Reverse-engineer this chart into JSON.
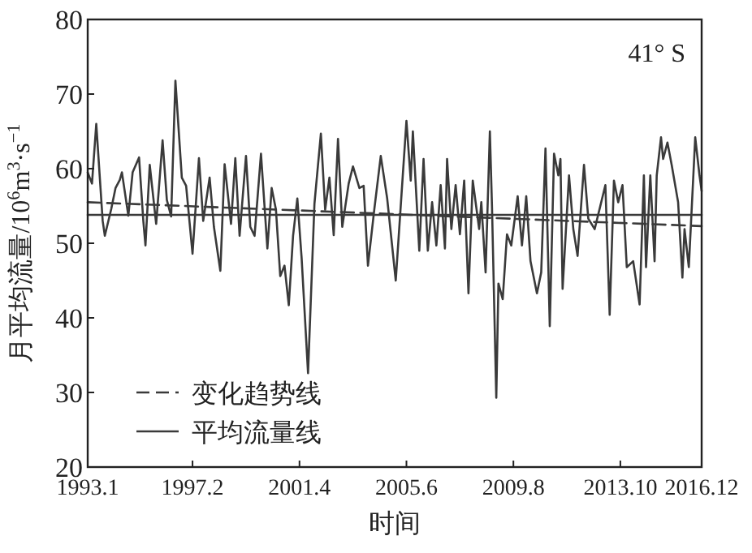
{
  "chart_data": {
    "type": "line",
    "xlabel": "时间",
    "ylabel": "月平均流量/10$^{6}$m$^{3}$·s$^{−1}$",
    "annotations": [
      "41° S"
    ],
    "xlim": [
      "1993-01",
      "2016-12"
    ],
    "xticks": [
      {
        "value": "1993-01",
        "label": "1993.1"
      },
      {
        "value": "1997-02",
        "label": "1997.2"
      },
      {
        "value": "2001-04",
        "label": "2001.4"
      },
      {
        "value": "2005-06",
        "label": "2005.6"
      },
      {
        "value": "2009-08",
        "label": "2009.8"
      },
      {
        "value": "2013-10",
        "label": "2013.10"
      },
      {
        "value": "2016-12",
        "label": "2016.12"
      }
    ],
    "ylim": [
      20,
      80
    ],
    "yticks": [
      20,
      30,
      40,
      50,
      60,
      70,
      80
    ],
    "grid": false,
    "legend": "bottom left",
    "marker": "none",
    "series": [
      {
        "color": "#3a3a3a",
        "line_style": "solid",
        "x": [
          "1993-01",
          "1993-03",
          "1993-05",
          "1993-08",
          "1993-09",
          "1993-12",
          "1994-02",
          "1994-04",
          "1994-05",
          "1994-08",
          "1994-10",
          "1995-01",
          "1995-03",
          "1995-04",
          "1995-06",
          "1995-09",
          "1995-12",
          "1996-02",
          "1996-04",
          "1996-06",
          "1996-09",
          "1996-11",
          "1997-02",
          "1997-05",
          "1997-07",
          "1997-10",
          "1997-12",
          "1998-03",
          "1998-05",
          "1998-08",
          "1998-10",
          "1998-12",
          "1999-03",
          "1999-05",
          "1999-07",
          "1999-10",
          "2000-01",
          "2000-03",
          "2000-05",
          "2000-07",
          "2000-09",
          "2000-11",
          "2001-01",
          "2001-03",
          "2001-05",
          "2001-08",
          "2001-11",
          "2002-02",
          "2002-04",
          "2002-06",
          "2002-08",
          "2002-10",
          "2002-12",
          "2003-03",
          "2003-05",
          "2003-08",
          "2003-10",
          "2003-12",
          "2004-03",
          "2004-06",
          "2004-09",
          "2005-01",
          "2005-06",
          "2005-08",
          "2005-09",
          "2005-12",
          "2006-02",
          "2006-04",
          "2006-06",
          "2006-08",
          "2006-10",
          "2006-12",
          "2007-01",
          "2007-03",
          "2007-05",
          "2007-07",
          "2007-09",
          "2007-11",
          "2008-01",
          "2008-04",
          "2008-05",
          "2008-07",
          "2008-09",
          "2008-10",
          "2008-12",
          "2009-01",
          "2009-03",
          "2009-05",
          "2009-07",
          "2009-10",
          "2009-12",
          "2010-02",
          "2010-04",
          "2010-07",
          "2010-09",
          "2010-11",
          "2011-01",
          "2011-03",
          "2011-05",
          "2011-06",
          "2011-07",
          "2011-10",
          "2011-12",
          "2012-02",
          "2012-05",
          "2012-07",
          "2012-10",
          "2013-03",
          "2013-05",
          "2013-07",
          "2013-09",
          "2013-11",
          "2014-01",
          "2014-04",
          "2014-07",
          "2014-09",
          "2014-10",
          "2014-12",
          "2015-02",
          "2015-03",
          "2015-05",
          "2015-06",
          "2015-08",
          "2015-10",
          "2016-01",
          "2016-03",
          "2016-04",
          "2016-06",
          "2016-09",
          "2016-11",
          "2016-12"
        ],
        "values": [
          59.5,
          58,
          66,
          53,
          51,
          54.6,
          57.4,
          58.5,
          59.5,
          53.7,
          59.5,
          61.5,
          53,
          49.7,
          60.5,
          52.6,
          63.8,
          55.8,
          53.6,
          71.8,
          58.8,
          57.7,
          48.6,
          61.4,
          53,
          58.8,
          52.2,
          46.3,
          60.6,
          52.6,
          61.4,
          51,
          61.7,
          52.2,
          51,
          62,
          49.3,
          57.4,
          54.5,
          45.6,
          47,
          41.7,
          51,
          56,
          48,
          32.6,
          55.3,
          64.7,
          54.5,
          58.8,
          51.1,
          64,
          52.2,
          58,
          60.3,
          57.4,
          57.7,
          47,
          54.6,
          61.7,
          56,
          45,
          66.4,
          58.4,
          65,
          49,
          61.3,
          49,
          55.5,
          49.7,
          57.8,
          49.3,
          61.3,
          51.9,
          57.8,
          51.2,
          58.4,
          43.3,
          58.4,
          51.9,
          55.5,
          46.1,
          65,
          54.8,
          29.3,
          44.6,
          42.5,
          51.2,
          49.7,
          56.3,
          49.7,
          56.3,
          47.6,
          43.3,
          46.1,
          62.7,
          38.9,
          62,
          59.1,
          61.3,
          43.9,
          59.1,
          51.9,
          48.3,
          60.5,
          53.3,
          51.9,
          57.8,
          40.4,
          58.4,
          55.5,
          57.8,
          46.8,
          47.6,
          41.8,
          59.1,
          46.8,
          59.1,
          47.6,
          59.1,
          64.2,
          61.3,
          63.5,
          60.5,
          55.5,
          45.4,
          51.9,
          46.8,
          64.2,
          59.1,
          57
        ]
      },
      {
        "name": "变化趋势线",
        "color": "#3a3a3a",
        "line_style": "dashed",
        "x": [
          "1993-01",
          "2016-12"
        ],
        "values": [
          55.5,
          52.3
        ]
      },
      {
        "name": "平均流量线",
        "color": "#3a3a3a",
        "line_style": "solid",
        "x": [
          "1993-01",
          "2016-12"
        ],
        "values": [
          53.8,
          53.8
        ]
      }
    ]
  }
}
